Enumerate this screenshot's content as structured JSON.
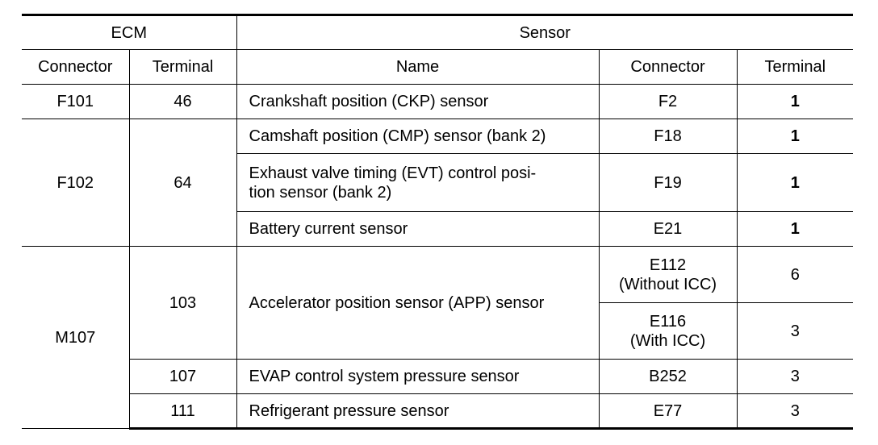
{
  "headers": {
    "ecm": "ECM",
    "sensor": "Sensor",
    "ecm_connector": "Connector",
    "ecm_terminal": "Terminal",
    "sensor_name": "Name",
    "sensor_connector": "Connector",
    "sensor_terminal": "Terminal"
  },
  "rows": [
    {
      "ecm_connector": "F101",
      "ecm_terminal": "46",
      "name": "Crankshaft position (CKP) sensor",
      "sensor_connector": "F2",
      "sensor_terminal": "1"
    },
    {
      "ecm_connector": "F102",
      "ecm_terminal": "64",
      "name": "Camshaft position (CMP) sensor (bank 2)",
      "sensor_connector": "F18",
      "sensor_terminal": "1"
    },
    {
      "name_line1": "Exhaust valve timing (EVT) control posi-",
      "name_line2": "tion sensor (bank 2)",
      "sensor_connector": "F19",
      "sensor_terminal": "1"
    },
    {
      "name": "Battery current sensor",
      "sensor_connector": "E21",
      "sensor_terminal": "1"
    },
    {
      "ecm_connector": "M107",
      "ecm_terminal": "103",
      "name": "Accelerator position sensor (APP) sensor",
      "sensor_connector_line1": "E112",
      "sensor_connector_line2": "(Without ICC)",
      "sensor_terminal": "6"
    },
    {
      "sensor_connector_line1": "E116",
      "sensor_connector_line2": "(With ICC)",
      "sensor_terminal": "3"
    },
    {
      "ecm_terminal": "107",
      "name": "EVAP control system pressure sensor",
      "sensor_connector": "B252",
      "sensor_terminal": "3"
    },
    {
      "ecm_terminal": "111",
      "name": "Refrigerant pressure sensor",
      "sensor_connector": "E77",
      "sensor_terminal": "3"
    }
  ]
}
